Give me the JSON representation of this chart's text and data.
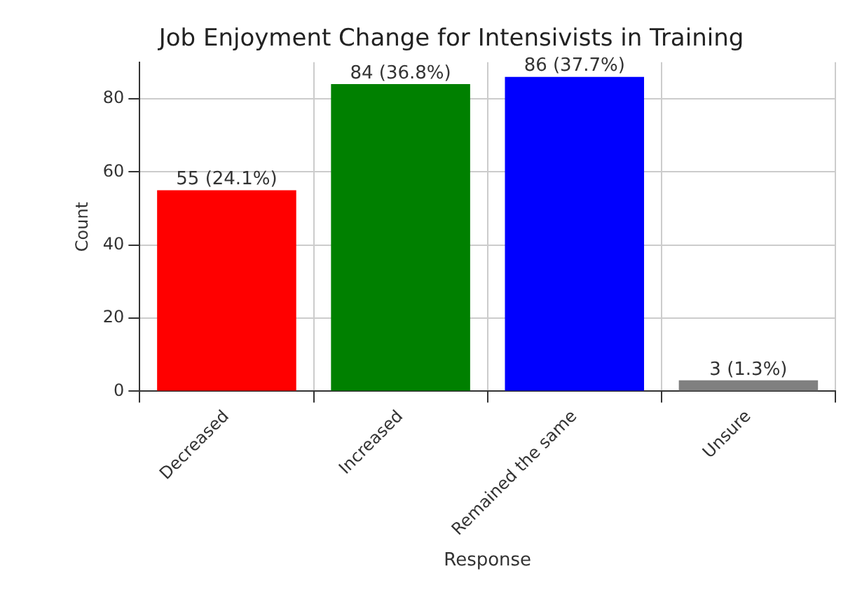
{
  "chart_data": {
    "type": "bar",
    "title": "Job Enjoyment Change for Intensivists in Training",
    "xlabel": "Response",
    "ylabel": "Count",
    "categories": [
      "Decreased",
      "Increased",
      "Remained the same",
      "Unsure"
    ],
    "values": [
      55,
      84,
      86,
      3
    ],
    "colors": [
      "#ff0000",
      "#008000",
      "#0000ff",
      "#808080"
    ],
    "value_labels": [
      "55 (24.1%)",
      "84 (36.8%)",
      "86 (37.7%)",
      "3 (1.3%)"
    ],
    "ylim": [
      0,
      90
    ],
    "yticks": [
      0,
      20,
      40,
      60,
      80
    ],
    "grid": true
  }
}
